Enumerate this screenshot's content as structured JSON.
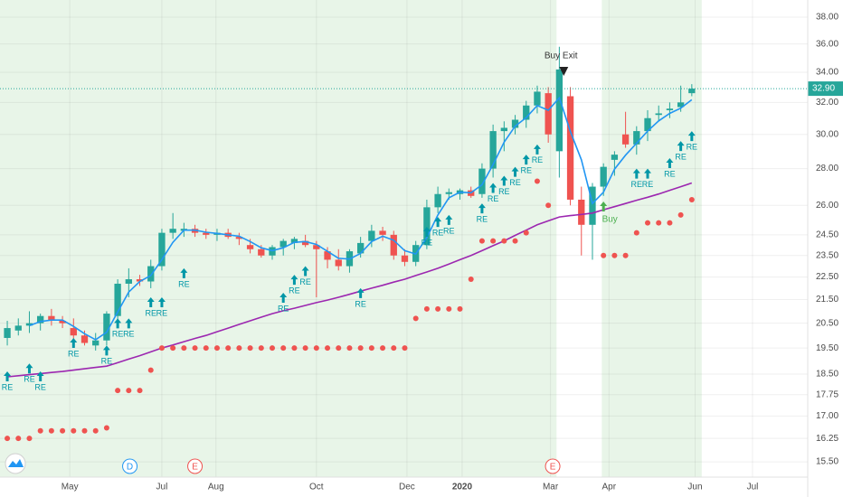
{
  "chart_data": {
    "type": "candlestick",
    "up_color": "#26a69a",
    "down_color": "#ef5350",
    "xlim": [
      -0.66,
      72.5
    ],
    "xticks": [
      {
        "value": 5.66,
        "label": "May"
      },
      {
        "value": 14.0,
        "label": "Jul"
      },
      {
        "value": 18.9,
        "label": "Aug"
      },
      {
        "value": 28.0,
        "label": "Oct"
      },
      {
        "value": 36.2,
        "label": "Dec"
      },
      {
        "value": 41.2,
        "label": "2020"
      },
      {
        "value": 49.2,
        "label": "Mar"
      },
      {
        "value": 54.5,
        "label": "Apr"
      },
      {
        "value": 62.3,
        "label": "Jun"
      },
      {
        "value": 67.5,
        "label": "Jul"
      }
    ],
    "ylim": [
      15.03,
      39.34
    ],
    "log_scale": true,
    "grid": true,
    "yticks": [
      {
        "value": 38,
        "label": "38.00"
      },
      {
        "value": 36,
        "label": "36.00"
      },
      {
        "value": 34,
        "label": "34.00"
      },
      {
        "value": 32,
        "label": "32.00"
      },
      {
        "value": 30,
        "label": "30.00"
      },
      {
        "value": 28,
        "label": "28.00"
      },
      {
        "value": 26,
        "label": "26.00"
      },
      {
        "value": 24.5,
        "label": "24.50"
      },
      {
        "value": 23.5,
        "label": "23.50"
      },
      {
        "value": 22.5,
        "label": "22.50"
      },
      {
        "value": 21.5,
        "label": "21.50"
      },
      {
        "value": 20.5,
        "label": "20.50"
      },
      {
        "value": 19.5,
        "label": "19.50"
      },
      {
        "value": 18.5,
        "label": "18.50"
      },
      {
        "value": 17.75,
        "label": "17.75"
      },
      {
        "value": 17,
        "label": "17.00"
      },
      {
        "value": 16.25,
        "label": "16.25"
      },
      {
        "value": 15.5,
        "label": "15.50"
      }
    ],
    "open": [
      19.9,
      20.2,
      20.4,
      20.5,
      20.8,
      20.6,
      20.3,
      20.0,
      19.6,
      19.8,
      20.8,
      22.2,
      22.4,
      22.3,
      23.0,
      24.6,
      24.7,
      24.8,
      24.6,
      24.5,
      24.6,
      24.4,
      24.0,
      23.8,
      23.5,
      23.9,
      24.1,
      24.2,
      24.0,
      23.7,
      23.3,
      23.0,
      23.6,
      24.2,
      24.7,
      24.5,
      23.5,
      23.2,
      24.0,
      25.9,
      26.6,
      26.6,
      26.8,
      26.6,
      28.0,
      30.2,
      30.4,
      30.9,
      31.8,
      32.6,
      29.0,
      32.4,
      26.3,
      25.0,
      27.0,
      28.5,
      30.0,
      29.4,
      30.2,
      31.2,
      31.5,
      31.7,
      32.6
    ],
    "high": [
      20.6,
      20.7,
      21.0,
      20.9,
      21.1,
      20.8,
      20.7,
      20.2,
      20.1,
      21.0,
      22.4,
      22.9,
      22.6,
      23.3,
      24.8,
      25.6,
      25.1,
      25.0,
      24.8,
      24.8,
      24.8,
      24.6,
      24.3,
      24.0,
      24.0,
      24.3,
      24.4,
      24.5,
      24.2,
      23.9,
      23.8,
      23.8,
      24.4,
      25.0,
      24.9,
      24.7,
      23.8,
      24.2,
      26.3,
      27.0,
      26.9,
      26.9,
      27.0,
      28.3,
      30.6,
      30.8,
      31.2,
      32.1,
      33.1,
      33.0,
      35.8,
      33.0,
      27.0,
      27.2,
      28.3,
      29.0,
      31.4,
      30.5,
      31.5,
      31.8,
      32.0,
      33.1,
      33.2
    ],
    "low": [
      19.6,
      20.0,
      20.1,
      20.2,
      20.4,
      20.3,
      19.8,
      19.6,
      19.4,
      19.6,
      20.5,
      21.6,
      22.1,
      22.0,
      22.8,
      24.3,
      24.4,
      24.4,
      24.3,
      24.2,
      24.3,
      24.0,
      23.6,
      23.4,
      23.3,
      23.5,
      23.8,
      23.9,
      21.6,
      22.9,
      22.8,
      22.7,
      23.4,
      23.9,
      24.2,
      23.3,
      23.0,
      23.0,
      23.8,
      25.6,
      26.3,
      26.3,
      26.4,
      26.4,
      27.5,
      29.0,
      30.0,
      30.4,
      31.3,
      29.5,
      27.5,
      26.0,
      23.5,
      23.3,
      26.5,
      27.6,
      29.2,
      28.8,
      29.6,
      30.8,
      31.0,
      31.4,
      32.4
    ],
    "close": [
      20.3,
      20.4,
      20.5,
      20.8,
      20.6,
      20.5,
      20.0,
      19.7,
      19.8,
      20.9,
      22.2,
      22.4,
      22.3,
      23.0,
      24.6,
      24.8,
      24.8,
      24.6,
      24.5,
      24.6,
      24.4,
      24.3,
      23.8,
      23.5,
      23.9,
      24.2,
      24.3,
      24.0,
      23.8,
      23.3,
      23.0,
      23.7,
      24.1,
      24.7,
      24.5,
      23.5,
      23.2,
      24.0,
      25.9,
      26.6,
      26.7,
      26.8,
      26.5,
      28.0,
      30.2,
      30.4,
      30.9,
      31.8,
      32.7,
      30.0,
      34.2,
      26.3,
      25.0,
      27.0,
      28.1,
      28.8,
      29.4,
      30.2,
      31.0,
      31.3,
      31.6,
      32.0,
      32.9
    ],
    "series": [
      {
        "color": "#2196f3",
        "values": [
          null,
          null,
          20.4,
          20.57,
          20.63,
          20.63,
          20.37,
          20.07,
          19.83,
          20.13,
          20.97,
          21.83,
          22.3,
          22.57,
          23.3,
          24.13,
          24.73,
          24.73,
          24.63,
          24.57,
          24.5,
          24.43,
          24.17,
          23.87,
          23.73,
          23.87,
          24.13,
          24.17,
          24.03,
          23.7,
          23.37,
          23.33,
          23.6,
          24.17,
          24.43,
          24.23,
          23.73,
          23.57,
          24.37,
          25.5,
          26.4,
          26.7,
          26.67,
          27.1,
          28.23,
          29.53,
          30.5,
          31.03,
          31.8,
          31.5,
          32.3,
          30.17,
          28.5,
          26.1,
          26.7,
          27.97,
          28.77,
          29.47,
          30.2,
          30.83,
          31.3,
          31.63,
          32.17
        ]
      },
      {
        "color": "#9c27b0",
        "values": [
          18.4,
          18.44,
          18.48,
          18.52,
          18.56,
          18.6,
          18.65,
          18.7,
          18.75,
          18.8,
          18.93,
          19.07,
          19.2,
          19.35,
          19.5,
          19.62,
          19.75,
          19.88,
          20.0,
          20.15,
          20.3,
          20.45,
          20.6,
          20.75,
          20.9,
          21.02,
          21.13,
          21.25,
          21.37,
          21.48,
          21.6,
          21.73,
          21.87,
          22.0,
          22.13,
          22.27,
          22.4,
          22.57,
          22.73,
          22.9,
          23.1,
          23.3,
          23.5,
          23.73,
          23.97,
          24.2,
          24.47,
          24.73,
          25.0,
          25.2,
          25.4,
          25.47,
          25.53,
          25.6,
          25.77,
          25.93,
          26.1,
          26.27,
          26.43,
          26.6,
          26.8,
          27.0,
          27.2
        ]
      }
    ],
    "dots": {
      "color": "#ef5350",
      "values": [
        16.25,
        16.25,
        16.25,
        16.5,
        16.5,
        16.5,
        16.5,
        16.5,
        16.5,
        16.6,
        17.9,
        17.9,
        17.9,
        18.65,
        19.5,
        19.5,
        19.5,
        19.5,
        19.5,
        19.5,
        19.5,
        19.5,
        19.5,
        19.5,
        19.5,
        19.5,
        19.5,
        19.5,
        19.5,
        19.5,
        19.5,
        19.5,
        19.5,
        19.5,
        19.5,
        19.5,
        19.5,
        20.7,
        21.1,
        21.1,
        21.1,
        21.1,
        22.4,
        24.2,
        24.2,
        24.2,
        24.2,
        24.6,
        27.3,
        26.0,
        null,
        null,
        null,
        null,
        23.5,
        23.5,
        23.5,
        24.6,
        25.1,
        25.1,
        25.1,
        25.5,
        26.3
      ]
    },
    "shaded_ranges": [
      [
        -0.66,
        49.75
      ],
      [
        53.85,
        62.9
      ]
    ],
    "annotations": [
      {
        "text": "RE",
        "x": 0,
        "y": 18.6
      },
      {
        "text": "RE",
        "x": 2,
        "y": 18.9
      },
      {
        "text": "RE",
        "x": 3,
        "y": 18.6
      },
      {
        "text": "RE",
        "x": 6,
        "y": 19.9
      },
      {
        "text": "RE",
        "x": 9,
        "y": 19.6
      },
      {
        "text": "RE",
        "x": 10,
        "y": 20.7
      },
      {
        "text": "RE",
        "x": 11,
        "y": 20.7
      },
      {
        "text": "RE",
        "x": 13,
        "y": 21.6
      },
      {
        "text": "RE",
        "x": 14,
        "y": 21.6
      },
      {
        "text": "RE",
        "x": 16,
        "y": 22.9
      },
      {
        "text": "RE",
        "x": 25,
        "y": 21.8
      },
      {
        "text": "RE",
        "x": 26,
        "y": 22.6
      },
      {
        "text": "RE",
        "x": 27,
        "y": 23.0
      },
      {
        "text": "RE",
        "x": 32,
        "y": 22.0
      },
      {
        "text": "RE",
        "x": 38,
        "y": 24.9
      },
      {
        "text": "RE",
        "x": 39,
        "y": 25.4
      },
      {
        "text": "RE",
        "x": 40,
        "y": 25.5
      },
      {
        "text": "RE",
        "x": 43,
        "y": 26.1
      },
      {
        "text": "RE",
        "x": 44,
        "y": 27.2
      },
      {
        "text": "RE",
        "x": 45,
        "y": 27.6
      },
      {
        "text": "RE",
        "x": 46,
        "y": 28.1
      },
      {
        "text": "RE",
        "x": 47,
        "y": 28.8
      },
      {
        "text": "RE",
        "x": 48,
        "y": 29.4
      },
      {
        "text": "RE",
        "x": 57,
        "y": 28.0
      },
      {
        "text": "RE",
        "x": 58,
        "y": 28.0
      },
      {
        "text": "RE",
        "x": 60,
        "y": 28.6
      },
      {
        "text": "RE",
        "x": 61,
        "y": 29.6
      },
      {
        "text": "RE",
        "x": 62,
        "y": 30.2
      }
    ],
    "buy": {
      "text": "Buy",
      "x": 54,
      "y": 26.2
    },
    "buy_exit": {
      "text": "Buy Exit",
      "x": 50.4,
      "y": 34.0
    },
    "events": [
      {
        "label": "D",
        "x": 11.1,
        "color": "#2196f3"
      },
      {
        "label": "E",
        "x": 17.0,
        "color": "#ef5350"
      },
      {
        "label": "E",
        "x": 49.4,
        "color": "#ef5350"
      }
    ],
    "last_price": {
      "value": 32.9,
      "label": "32.90"
    }
  }
}
